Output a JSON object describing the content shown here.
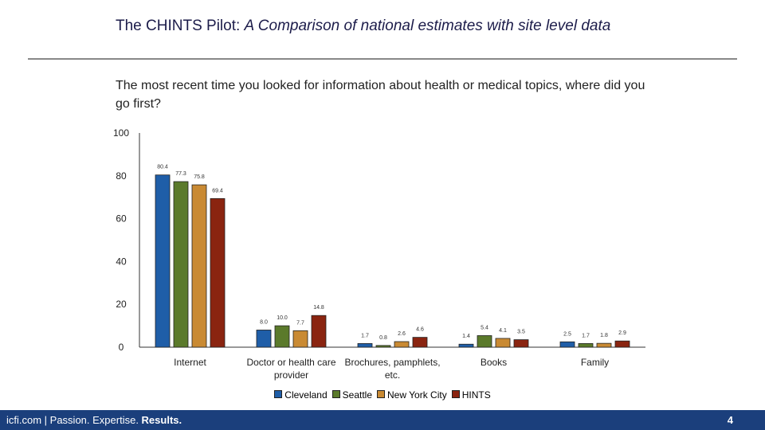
{
  "slide": {
    "title_lead": "The CHINTS Pilot: ",
    "title_italic": "A Comparison of national estimates with  site level data",
    "footer_lead": "icfi.com | Passion. Expertise. ",
    "footer_bold": "Results.",
    "page_number": "4"
  },
  "chart_data": {
    "type": "bar",
    "title": "The most recent time you looked for information about health or medical topics, where did you go first?",
    "categories": [
      "Internet",
      "Doctor or health care provider",
      "Brochures, pamphlets, etc.",
      "Books",
      "Family"
    ],
    "series": [
      {
        "name": "Cleveland",
        "color": "#1f5ea8",
        "values": [
          80.4,
          8.0,
          1.7,
          1.4,
          2.5
        ],
        "value_labels": [
          "80.4",
          "8.0",
          "1.7",
          "1.4",
          "2.5"
        ]
      },
      {
        "name": "Seattle",
        "color": "#5b7a2b",
        "values": [
          77.3,
          10.0,
          0.8,
          5.4,
          1.7
        ],
        "value_labels": [
          "77.3",
          "10.0",
          "0.8",
          "5.4",
          "1.7"
        ]
      },
      {
        "name": "New York City",
        "color": "#c98a33",
        "values": [
          75.8,
          7.7,
          2.6,
          4.1,
          1.8
        ],
        "value_labels": [
          "75.8",
          "7.7",
          "2.6",
          "4.1",
          "1.8"
        ]
      },
      {
        "name": "HINTS",
        "color": "#8a2410",
        "values": [
          69.4,
          14.8,
          4.6,
          3.5,
          2.9
        ],
        "value_labels": [
          "69.4",
          "14.8",
          "4.6",
          "3.5",
          "2.9"
        ]
      }
    ],
    "ylim": [
      0,
      100
    ],
    "yticks": [
      0,
      20,
      40,
      60,
      80,
      100
    ],
    "legend": "bottom"
  }
}
